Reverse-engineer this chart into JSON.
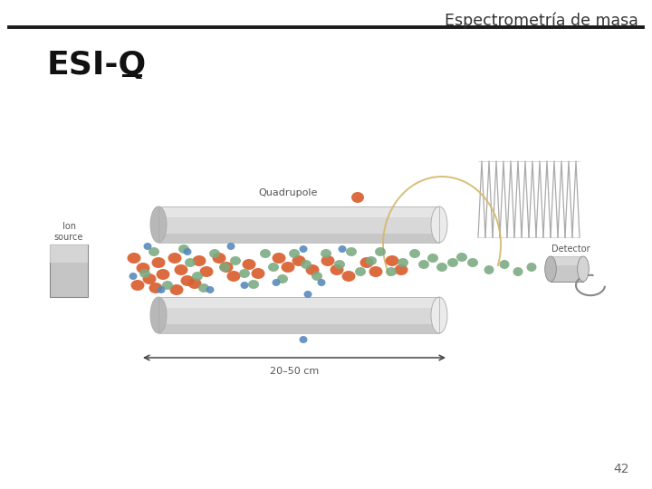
{
  "title_right": "Espectrometría de masa",
  "subtitle": "ESI-Q",
  "page_number": "42",
  "bg_color": "#ffffff",
  "title_color": "#333333",
  "subtitle_color": "#111111",
  "line_color": "#1a1a1a",
  "orange_color": "#d95f30",
  "green_color": "#7aaa80",
  "blue_color": "#5588bb",
  "tube_color": "#d8d8d8",
  "tube_highlight": "#ebebeb",
  "tube_shadow": "#b8b8b8",
  "tube_edge_color": "#aaaaaa",
  "arrow_color": "#444444",
  "label_color": "#555555",
  "quadrupole_label": "Quadrupole",
  "ion_source_label": "Ion\nsource",
  "detector_label": "Detector",
  "scale_label": "20–50 cm",
  "loop_color": "#d4b86a",
  "wave_color": "#aaaaaa"
}
